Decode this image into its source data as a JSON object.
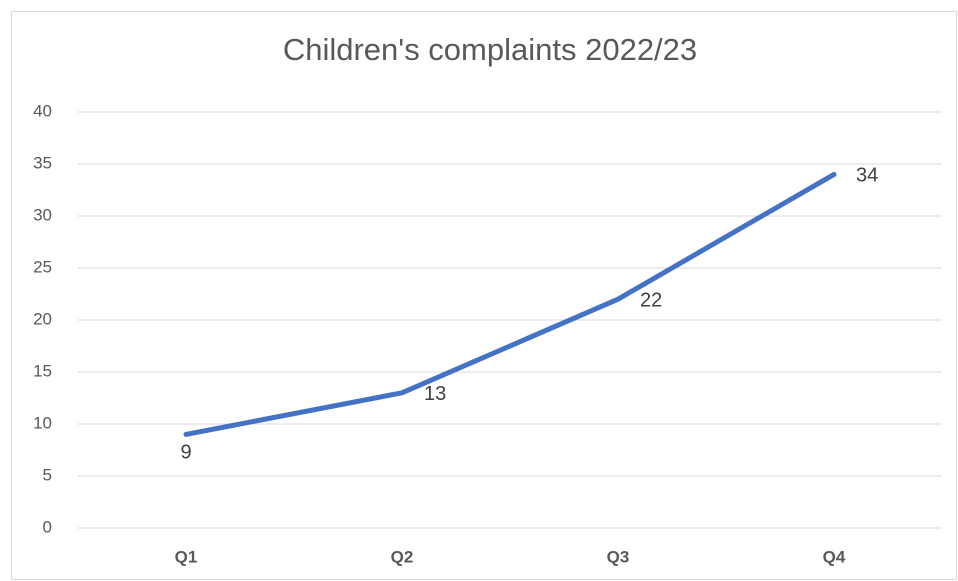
{
  "chart_data": {
    "type": "line",
    "title": "Children's complaints 2022/23",
    "categories": [
      "Q1",
      "Q2",
      "Q3",
      "Q4"
    ],
    "values": [
      9,
      13,
      22,
      34
    ],
    "color": "#4472c4",
    "ylim": [
      0,
      40
    ],
    "yticks": [
      0,
      5,
      10,
      15,
      20,
      25,
      30,
      35,
      40
    ],
    "grid": true,
    "data_labels": true
  }
}
